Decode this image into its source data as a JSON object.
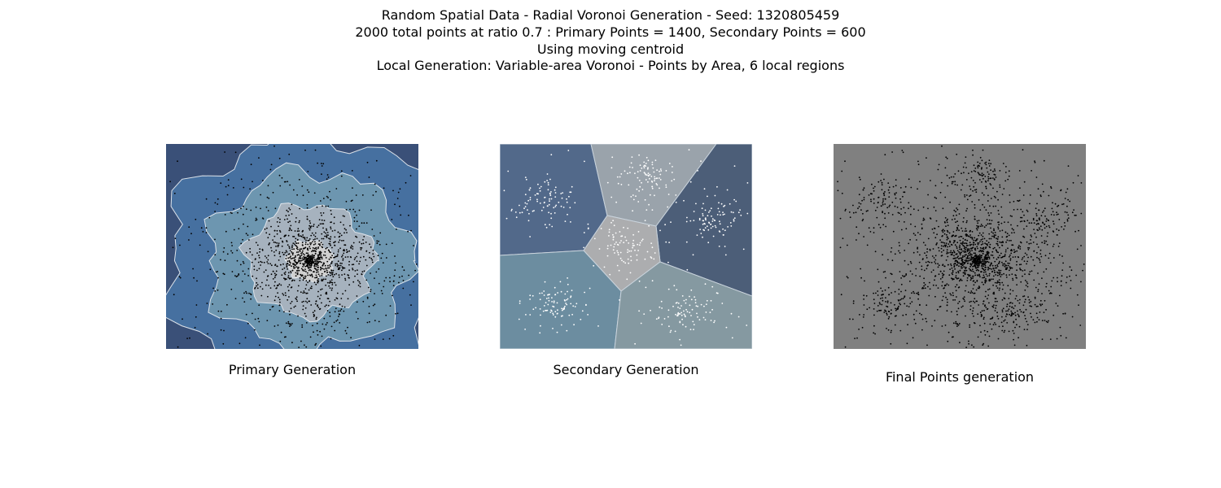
{
  "title": {
    "lines": [
      "Random Spatial Data - Radial Voronoi Generation - Seed: 1320805459",
      "2000 total points at ratio 0.7 : Primary Points = 1400, Secondary Points = 600",
      "Using moving centroid",
      "Local Generation: Variable-area Voronoi - Points by Area, 6 local regions"
    ]
  },
  "chart_data": [
    {
      "type": "scatter",
      "title": "Primary Generation",
      "description_source": "title line 2",
      "total_points": 1400,
      "distribution": "radial, centered near middle of extent",
      "center": [
        0.57,
        0.57
      ],
      "point_color": "#000000",
      "background_bands_colors": [
        "#3a5078",
        "#4670a0",
        "#6d96b0",
        "#a6b2be",
        "#d0d0d0"
      ],
      "axes_visible": false
    },
    {
      "type": "scatter",
      "title": "Secondary Generation",
      "description_source": "title line 4",
      "total_points": 600,
      "local_regions": 6,
      "region_colors": [
        "#52698a",
        "#9aa3ab",
        "#4c5e78",
        "#acadaf",
        "#6c8da0",
        "#8599a1"
      ],
      "point_color": "#ffffff",
      "axes_visible": false
    },
    {
      "type": "scatter",
      "title": "Final Points generation",
      "total_points": 2000,
      "background_color": "#808080",
      "point_color": "#000000",
      "axes_visible": false
    }
  ],
  "captions": {
    "primary": "Primary Generation",
    "secondary": "Secondary Generation",
    "final": "Final Points generation"
  }
}
